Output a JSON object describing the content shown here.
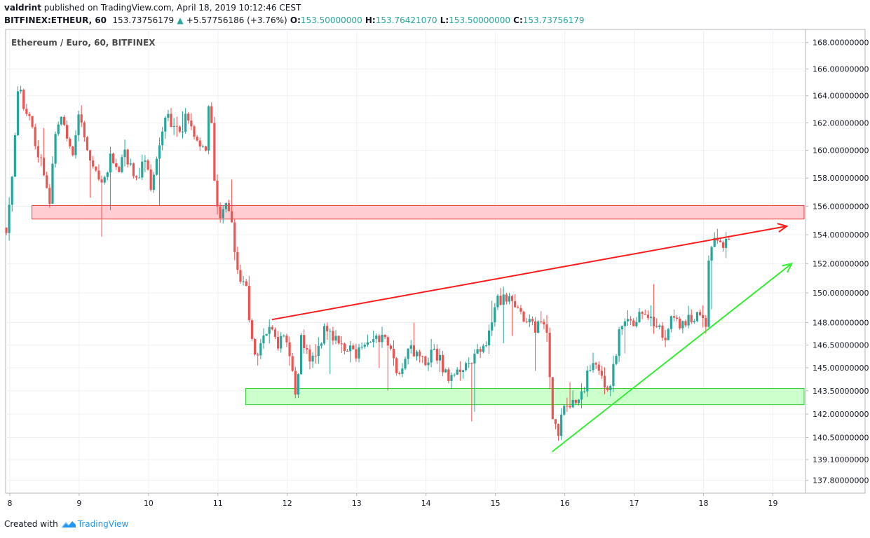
{
  "header": {
    "publisher": "valdrint",
    "published_text": "published on TradingView.com, April 18, 2019 10:12:46 CEST",
    "symbol": "BITFINEX:ETHEUR, 60",
    "last_price": "153.73756179",
    "change": "+5.57756186 (+3.76%)",
    "open_label": "O:",
    "open": "153.50000000",
    "high_label": "H:",
    "high": "153.76421070",
    "low_label": "L:",
    "low": "153.50000000",
    "close_label": "C:",
    "close": "153.73756179"
  },
  "footer": {
    "created_with": "Created with",
    "brand": "TradingView"
  },
  "colors": {
    "up": "#26a69a",
    "down": "#ef5350",
    "resistance_fill": "#ffcdd2",
    "resistance_border": "#e53935",
    "support_fill": "#ccffcc",
    "support_border": "#33cc33",
    "trend_red": "#ff1a1a",
    "trend_green": "#33ee33"
  },
  "chart_data": {
    "type": "candlestick",
    "title": "Ethereum / Euro, 60, BITFINEX",
    "x_ticks": [
      "8",
      "9",
      "10",
      "11",
      "12",
      "13",
      "14",
      "15",
      "16",
      "17",
      "18",
      "19"
    ],
    "y_ticks": [
      "168.00000000",
      "166.00000000",
      "164.00000000",
      "162.00000000",
      "160.00000000",
      "158.00000000",
      "156.00000000",
      "154.00000000",
      "152.00000000",
      "150.00000000",
      "148.00000000",
      "146.50000000",
      "145.00000000",
      "143.50000000",
      "142.00000000",
      "140.50000000",
      "139.10000000",
      "137.80000000"
    ],
    "y_scale": "log",
    "ylim": [
      137.0,
      169.0
    ],
    "xlim": [
      7.94,
      19.47
    ],
    "price_path": [
      [
        7.95,
        154.5
      ],
      [
        8.05,
        159
      ],
      [
        8.12,
        165
      ],
      [
        8.2,
        163
      ],
      [
        8.3,
        162
      ],
      [
        8.38,
        160
      ],
      [
        8.5,
        158.5
      ],
      [
        8.58,
        156.2
      ],
      [
        8.65,
        161
      ],
      [
        8.75,
        162.3
      ],
      [
        8.85,
        160.5
      ],
      [
        8.92,
        160
      ],
      [
        9.0,
        163
      ],
      [
        9.08,
        160.5
      ],
      [
        9.15,
        159.5
      ],
      [
        9.25,
        158.6
      ],
      [
        9.35,
        157.8
      ],
      [
        9.45,
        159.5
      ],
      [
        9.55,
        158.5
      ],
      [
        9.65,
        160
      ],
      [
        9.75,
        158.5
      ],
      [
        9.85,
        158
      ],
      [
        9.95,
        159.5
      ],
      [
        10.05,
        157
      ],
      [
        10.15,
        160.5
      ],
      [
        10.25,
        162.5
      ],
      [
        10.35,
        162
      ],
      [
        10.45,
        161
      ],
      [
        10.55,
        162.5
      ],
      [
        10.62,
        161.5
      ],
      [
        10.72,
        160.5
      ],
      [
        10.82,
        160
      ],
      [
        10.87,
        163
      ],
      [
        10.92,
        161.5
      ],
      [
        10.97,
        156
      ],
      [
        11.03,
        155.2
      ],
      [
        11.1,
        156.5
      ],
      [
        11.18,
        155.5
      ],
      [
        11.25,
        152
      ],
      [
        11.32,
        151
      ],
      [
        11.4,
        150.5
      ],
      [
        11.47,
        147.5
      ],
      [
        11.55,
        146
      ],
      [
        11.62,
        146.7
      ],
      [
        11.7,
        147.5
      ],
      [
        11.8,
        147.8
      ],
      [
        11.88,
        146.5
      ],
      [
        11.95,
        147.2
      ],
      [
        12.05,
        146
      ],
      [
        12.12,
        143.3
      ],
      [
        12.2,
        146.8
      ],
      [
        12.3,
        145.8
      ],
      [
        12.4,
        145.2
      ],
      [
        12.48,
        146.5
      ],
      [
        12.55,
        147.8
      ],
      [
        12.62,
        147.2
      ],
      [
        12.7,
        146.8
      ],
      [
        12.8,
        146.2
      ],
      [
        12.9,
        146.5
      ],
      [
        13.0,
        146
      ],
      [
        13.1,
        147
      ],
      [
        13.2,
        146.7
      ],
      [
        13.3,
        147.2
      ],
      [
        13.4,
        146.8
      ],
      [
        13.5,
        146.2
      ],
      [
        13.55,
        145.2
      ],
      [
        13.62,
        144.8
      ],
      [
        13.7,
        146
      ],
      [
        13.8,
        146.3
      ],
      [
        13.9,
        145.8
      ],
      [
        14.0,
        145
      ],
      [
        14.1,
        146
      ],
      [
        14.2,
        145.5
      ],
      [
        14.28,
        144.5
      ],
      [
        14.35,
        144.2
      ],
      [
        14.45,
        144.5
      ],
      [
        14.55,
        145
      ],
      [
        14.65,
        145.5
      ],
      [
        14.75,
        146
      ],
      [
        14.85,
        146.5
      ],
      [
        14.92,
        147.5
      ],
      [
        15.0,
        149.5
      ],
      [
        15.08,
        149.2
      ],
      [
        15.15,
        149.8
      ],
      [
        15.25,
        149.3
      ],
      [
        15.33,
        148.8
      ],
      [
        15.4,
        148.5
      ],
      [
        15.5,
        148.2
      ],
      [
        15.58,
        147.6
      ],
      [
        15.68,
        147.8
      ],
      [
        15.75,
        147.4
      ],
      [
        15.8,
        143
      ],
      [
        15.85,
        141.2
      ],
      [
        15.9,
        140.5
      ],
      [
        15.95,
        142
      ],
      [
        16.05,
        142.5
      ],
      [
        16.15,
        142.8
      ],
      [
        16.22,
        143.2
      ],
      [
        16.3,
        144
      ],
      [
        16.4,
        145.5
      ],
      [
        16.5,
        144.5
      ],
      [
        16.6,
        143.8
      ],
      [
        16.68,
        144.2
      ],
      [
        16.75,
        146.5
      ],
      [
        16.8,
        148.2
      ],
      [
        16.88,
        148
      ],
      [
        16.95,
        147.8
      ],
      [
        17.05,
        148.5
      ],
      [
        17.15,
        148.8
      ],
      [
        17.25,
        148.2
      ],
      [
        17.35,
        147.5
      ],
      [
        17.45,
        147.2
      ],
      [
        17.55,
        148.5
      ],
      [
        17.62,
        148
      ],
      [
        17.7,
        147.8
      ],
      [
        17.8,
        148.2
      ],
      [
        17.9,
        148.6
      ],
      [
        17.98,
        147.9
      ],
      [
        18.05,
        148.2
      ],
      [
        18.08,
        153.2
      ],
      [
        18.12,
        153.6
      ],
      [
        18.18,
        154.0
      ],
      [
        18.25,
        153.4
      ],
      [
        18.32,
        153.3
      ],
      [
        18.4,
        153.74
      ]
    ],
    "resistance_zone": {
      "x_start": 8.32,
      "x_end": 19.47,
      "y_bottom": 155.1,
      "y_top": 156.05
    },
    "support_zone": {
      "x_start": 11.4,
      "x_end": 19.47,
      "y_bottom": 142.6,
      "y_top": 143.65
    },
    "trendlines": [
      {
        "color": "red",
        "from": [
          11.78,
          148.2
        ],
        "to": [
          19.2,
          154.6
        ],
        "arrow": true
      },
      {
        "color": "green",
        "from": [
          15.82,
          139.6
        ],
        "to": [
          19.27,
          152.0
        ],
        "arrow": true
      }
    ]
  }
}
